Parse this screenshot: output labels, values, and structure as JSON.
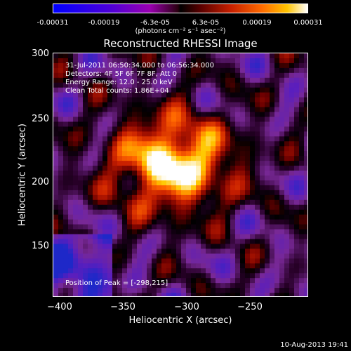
{
  "colorbar": {
    "tick_labels": [
      "-0.00031",
      "-0.00019",
      "-6.3e-05",
      "6.3e-05",
      "0.00019",
      "0.00031"
    ],
    "units": "(photons cm⁻² s⁻¹ asec⁻²)"
  },
  "image": {
    "title": "Reconstructed RHESSI Image",
    "info_lines": [
      "31-Jul-2011 06:50:34.000 to 06:56:34.000",
      "Detectors: 4F 5F 6F 7F 8F, Att 0",
      "Energy Range: 12.0 - 25.0 keV",
      "Clean     Total counts: 1.86E+04"
    ],
    "peak_text": "Position of Peak = [-298,215]"
  },
  "axes": {
    "x_label": "Heliocentric X (arcsec)",
    "y_label": "Heliocentric Y (arcsec)",
    "x_ticks": [
      "−400",
      "−350",
      "−300",
      "−250"
    ],
    "y_ticks": [
      "300",
      "250",
      "200",
      "150"
    ]
  },
  "footer": "10-Aug-2013 19:41",
  "chart_data": {
    "type": "heatmap",
    "title": "Reconstructed RHESSI Image",
    "xlabel": "Heliocentric X (arcsec)",
    "ylabel": "Heliocentric Y (arcsec)",
    "xlim": [
      -405,
      -213
    ],
    "ylim": [
      108,
      302
    ],
    "colorbar_range": [
      -0.00031,
      0.00031
    ],
    "peak_position": [
      -298,
      215
    ],
    "colormap": "blue-purple-black-red-orange-yellow-white"
  }
}
